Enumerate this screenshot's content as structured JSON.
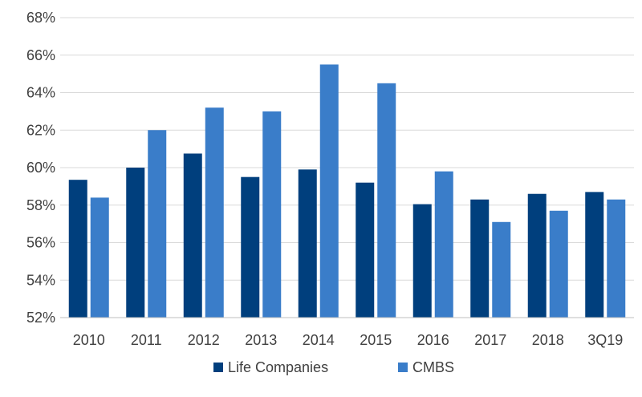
{
  "chart_data": {
    "type": "bar",
    "categories": [
      "2010",
      "2011",
      "2012",
      "2013",
      "2014",
      "2015",
      "2016",
      "2017",
      "2018",
      "3Q19"
    ],
    "series": [
      {
        "name": "Life Companies",
        "color": "#003F7D",
        "values": [
          59.35,
          60.0,
          60.75,
          59.5,
          59.9,
          59.2,
          58.05,
          58.3,
          58.6,
          58.7
        ]
      },
      {
        "name": "CMBS",
        "color": "#3A7DC9",
        "values": [
          58.4,
          62.0,
          63.2,
          63.0,
          65.5,
          64.5,
          59.8,
          57.1,
          57.7,
          58.3
        ]
      }
    ],
    "ylim": [
      52,
      68
    ],
    "yticks": [
      52,
      54,
      56,
      58,
      60,
      62,
      64,
      66,
      68
    ],
    "ytick_labels": [
      "52%",
      "54%",
      "56%",
      "58%",
      "60%",
      "62%",
      "64%",
      "66%",
      "68%"
    ],
    "grid": true,
    "legend_position": "bottom",
    "title": "",
    "xlabel": "",
    "ylabel": ""
  }
}
